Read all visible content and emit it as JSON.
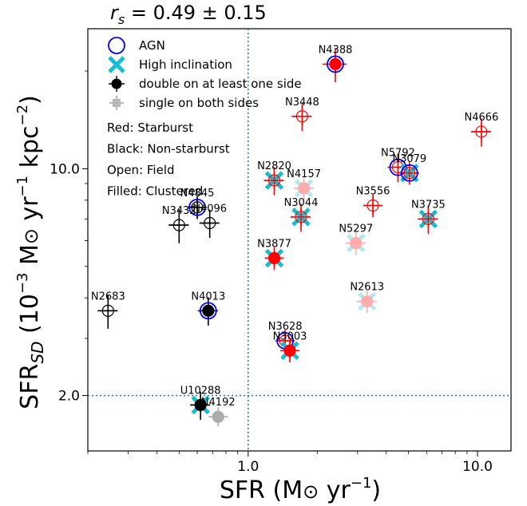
{
  "chart_data": {
    "type": "scatter",
    "title": "r_s = 0.49 ± 0.15",
    "xlabel": "SFR (M☉ yr⁻¹)",
    "ylabel": "SFR_SD (10⁻³ M☉ yr⁻¹ kpc⁻²)",
    "xscale": "log",
    "yscale": "log",
    "xlim": [
      0.2,
      14
    ],
    "ylim": [
      1.35,
      27
    ],
    "xticks": [
      {
        "v": 1.0,
        "label": "1.0"
      },
      {
        "v": 10.0,
        "label": "10.0"
      }
    ],
    "yticks": [
      {
        "v": 2.0,
        "label": "2.0"
      },
      {
        "v": 10.0,
        "label": "10.0"
      }
    ],
    "reference_lines": {
      "x": 1.0,
      "y": 2.0,
      "style": "dotted",
      "color": "#1f77b4"
    },
    "legend": {
      "position": "top-left",
      "items": [
        {
          "label": "AGN",
          "marker": "open-circle",
          "color": "#0000ff"
        },
        {
          "label": "High inclination",
          "marker": "x",
          "color": "#17becf"
        },
        {
          "label": "double on at least one side",
          "marker": "filled-circle-cross",
          "color": "#000000"
        },
        {
          "label": "single on both sides",
          "marker": "filled-plus",
          "color": "#b8b8b8"
        }
      ],
      "notes": [
        {
          "text": "Red: Starburst",
          "color": "#ff0000"
        },
        {
          "text": "Black: Non-starburst",
          "color": "#000000"
        },
        {
          "text": "Open: Field",
          "color": "#000000"
        },
        {
          "text": "Filled: Clustered",
          "color": "#000000"
        }
      ]
    },
    "points": [
      {
        "name": "N4388",
        "x": 2.4,
        "y": 21.0,
        "color": "red",
        "filled": true,
        "agn": true,
        "highinc": false,
        "single": false,
        "xerr": 0.12,
        "yerr": 0.12
      },
      {
        "name": "N3448",
        "x": 1.72,
        "y": 14.5,
        "color": "red",
        "filled": false,
        "agn": false,
        "highinc": false,
        "single": false,
        "xerr": 0.1,
        "yerr": 0.1
      },
      {
        "name": "N4666",
        "x": 10.4,
        "y": 13.0,
        "color": "red",
        "filled": false,
        "agn": false,
        "highinc": false,
        "single": false,
        "xerr": 0.1,
        "yerr": 0.1
      },
      {
        "name": "N5792",
        "x": 4.5,
        "y": 10.1,
        "color": "red",
        "filled": false,
        "agn": true,
        "highinc": false,
        "single": false,
        "xerr": 0.1,
        "yerr": 0.1
      },
      {
        "name": "N3079",
        "x": 5.05,
        "y": 9.7,
        "color": "red",
        "filled": false,
        "agn": true,
        "highinc": true,
        "single": false,
        "xerr": 0.08,
        "yerr": 0.08
      },
      {
        "name": "N2820",
        "x": 1.3,
        "y": 9.2,
        "color": "red",
        "filled": false,
        "agn": false,
        "highinc": true,
        "single": false,
        "xerr": 0.1,
        "yerr": 0.1
      },
      {
        "name": "N4157",
        "x": 1.75,
        "y": 8.7,
        "color": "red",
        "filled": true,
        "agn": false,
        "highinc": true,
        "single": true,
        "xerr": 0.08,
        "yerr": 0.08
      },
      {
        "name": "N3556",
        "x": 3.5,
        "y": 7.7,
        "color": "red",
        "filled": false,
        "agn": false,
        "highinc": false,
        "single": false,
        "xerr": 0.08,
        "yerr": 0.08
      },
      {
        "name": "N3044",
        "x": 1.7,
        "y": 7.1,
        "color": "red",
        "filled": false,
        "agn": false,
        "highinc": true,
        "single": false,
        "xerr": 0.1,
        "yerr": 0.1
      },
      {
        "name": "N3735",
        "x": 6.1,
        "y": 7.0,
        "color": "red",
        "filled": false,
        "agn": false,
        "highinc": true,
        "single": false,
        "xerr": 0.1,
        "yerr": 0.1
      },
      {
        "name": "N5297",
        "x": 2.95,
        "y": 5.9,
        "color": "red",
        "filled": true,
        "agn": false,
        "highinc": true,
        "single": true,
        "xerr": 0.1,
        "yerr": 0.08
      },
      {
        "name": "N3877",
        "x": 1.3,
        "y": 5.3,
        "color": "red",
        "filled": true,
        "agn": false,
        "highinc": true,
        "single": false,
        "xerr": 0.08,
        "yerr": 0.08
      },
      {
        "name": "N2613",
        "x": 3.3,
        "y": 3.9,
        "color": "red",
        "filled": true,
        "agn": false,
        "highinc": true,
        "single": true,
        "xerr": 0.1,
        "yerr": 0.08
      },
      {
        "name": "N3628",
        "x": 1.45,
        "y": 2.95,
        "color": "red",
        "filled": false,
        "agn": true,
        "highinc": false,
        "single": false,
        "xerr": 0.08,
        "yerr": 0.08
      },
      {
        "name": "N3003",
        "x": 1.52,
        "y": 2.75,
        "color": "red",
        "filled": true,
        "agn": false,
        "highinc": true,
        "single": false,
        "xerr": 0.08,
        "yerr": 0.08
      },
      {
        "name": "N4845",
        "x": 0.6,
        "y": 7.6,
        "color": "black",
        "filled": false,
        "agn": true,
        "highinc": false,
        "single": false,
        "xerr": 0.08,
        "yerr": 0.08
      },
      {
        "name": "N3432",
        "x": 0.5,
        "y": 6.7,
        "color": "black",
        "filled": false,
        "agn": false,
        "highinc": false,
        "single": false,
        "xerr": 0.1,
        "yerr": 0.12
      },
      {
        "name": "N4096",
        "x": 0.68,
        "y": 6.8,
        "color": "black",
        "filled": false,
        "agn": false,
        "highinc": false,
        "single": false,
        "xerr": 0.1,
        "yerr": 0.1
      },
      {
        "name": "N2683",
        "x": 0.245,
        "y": 3.65,
        "color": "black",
        "filled": false,
        "agn": false,
        "highinc": false,
        "single": false,
        "xerr": 0.1,
        "yerr": 0.12
      },
      {
        "name": "N4013",
        "x": 0.67,
        "y": 3.65,
        "color": "black",
        "filled": true,
        "agn": true,
        "highinc": false,
        "single": false,
        "xerr": 0.1,
        "yerr": 0.1
      },
      {
        "name": "U10288",
        "x": 0.62,
        "y": 1.87,
        "color": "black",
        "filled": true,
        "agn": false,
        "highinc": true,
        "single": false,
        "xerr": 0.1,
        "yerr": 0.1
      },
      {
        "name": "N4192",
        "x": 0.74,
        "y": 1.72,
        "color": "black",
        "filled": true,
        "agn": false,
        "highinc": false,
        "single": true,
        "xerr": 0.05,
        "yerr": 0.05
      }
    ]
  }
}
